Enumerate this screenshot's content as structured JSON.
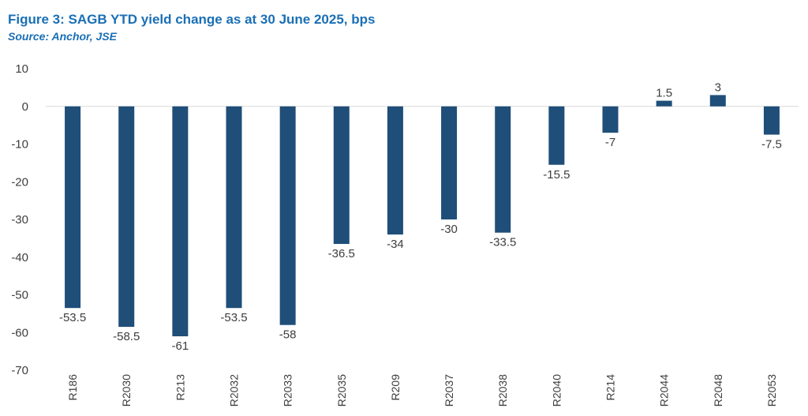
{
  "header": {
    "title": "Figure 3: SAGB YTD yield change as at 30 June 2025, bps",
    "source": "Source: Anchor, JSE"
  },
  "colors": {
    "bar": "#1f4e79",
    "title": "#1a6fb5",
    "axis": "#d9d9d9",
    "text": "#3d3d3d"
  },
  "chart_data": {
    "type": "bar",
    "title": "Figure 3: SAGB YTD yield change as at 30 June 2025, bps",
    "xlabel": "",
    "ylabel": "",
    "ylim": [
      -70,
      10
    ],
    "yticks": [
      10,
      0,
      -10,
      -20,
      -30,
      -40,
      -50,
      -60,
      -70
    ],
    "grid": false,
    "legend": "none",
    "categories": [
      "R186",
      "R2030",
      "R213",
      "R2032",
      "R2033",
      "R2035",
      "R209",
      "R2037",
      "R2038",
      "R2040",
      "R214",
      "R2044",
      "R2048",
      "R2053"
    ],
    "values": [
      -53.5,
      -58.5,
      -61,
      -53.5,
      -58,
      -36.5,
      -34,
      -30,
      -33.5,
      -15.5,
      -7,
      1.5,
      3,
      -7.5
    ]
  }
}
